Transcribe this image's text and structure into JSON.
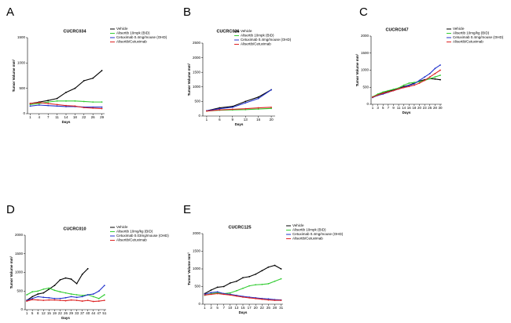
{
  "chart_data": [
    {
      "type": "line",
      "label": "A",
      "title": "CUCRC034",
      "x_label": "Days",
      "y_label": "Tumor Volume mm³",
      "categories": [
        1,
        4,
        7,
        11,
        14,
        18,
        22,
        26,
        29
      ],
      "ylim": [
        0,
        1500
      ],
      "yticks": [
        0,
        500,
        1000,
        1500
      ],
      "series": [
        {
          "name": "Vehicle",
          "color": "#000000",
          "values": [
            200,
            230,
            260,
            300,
            420,
            500,
            650,
            700,
            850
          ]
        },
        {
          "name": "Alisertib 10mpk (BID)",
          "color": "#33cc33",
          "values": [
            180,
            200,
            230,
            250,
            250,
            250,
            240,
            230,
            230
          ]
        },
        {
          "name": "Cetuximab 0.4mg/mouse (OHD)",
          "color": "#2233cc",
          "values": [
            150,
            170,
            160,
            150,
            140,
            140,
            130,
            130,
            130
          ]
        },
        {
          "name": "Alisertib/Cetuximab",
          "color": "#dd2222",
          "values": [
            200,
            220,
            200,
            180,
            160,
            150,
            120,
            110,
            100
          ]
        }
      ]
    },
    {
      "type": "line",
      "label": "B",
      "title": "CUCRC026",
      "x_label": "Days",
      "y_label": "Tumor Volume mm³",
      "categories": [
        1,
        6,
        9,
        13,
        16,
        20
      ],
      "ylim": [
        0,
        2500
      ],
      "yticks": [
        0,
        500,
        1000,
        1500,
        2000,
        2500
      ],
      "series": [
        {
          "name": "Vehicle",
          "color": "#000000",
          "values": [
            180,
            280,
            330,
            500,
            650,
            900
          ]
        },
        {
          "name": "Alisertib 10mpk (BID)",
          "color": "#33cc33",
          "values": [
            170,
            200,
            210,
            220,
            240,
            260
          ]
        },
        {
          "name": "Cetuximab 0.4mg/mouse (OHD)",
          "color": "#2233cc",
          "values": [
            180,
            250,
            300,
            450,
            600,
            900
          ]
        },
        {
          "name": "Alisertib/Cetuximab",
          "color": "#dd2222",
          "values": [
            170,
            210,
            230,
            250,
            280,
            300
          ]
        }
      ]
    },
    {
      "type": "line",
      "label": "C",
      "title": "CUCRC047",
      "x_label": "Days",
      "y_label": "Tumor Volume mm³",
      "categories": [
        1,
        3,
        5,
        7,
        9,
        11,
        14,
        16,
        18,
        20,
        23,
        25,
        28,
        30
      ],
      "ylim": [
        0,
        2000
      ],
      "yticks": [
        0,
        500,
        1000,
        1500,
        2000
      ],
      "series": [
        {
          "name": "Vehicle",
          "color": "#000000",
          "values": [
            200,
            280,
            330,
            380,
            420,
            460,
            520,
            560,
            620,
            680,
            720,
            750,
            740,
            720
          ]
        },
        {
          "name": "Alisertib 10mg/kg (BID)",
          "color": "#33cc33",
          "values": [
            220,
            300,
            360,
            400,
            440,
            480,
            560,
            620,
            640,
            660,
            700,
            750,
            800,
            850
          ]
        },
        {
          "name": "Cetuximab 0.4mg/mouse (OHD)",
          "color": "#2233cc",
          "values": [
            200,
            260,
            300,
            350,
            400,
            450,
            500,
            550,
            600,
            700,
            800,
            900,
            1050,
            1150
          ]
        },
        {
          "name": "Alisertib/Cetuximab",
          "color": "#dd2222",
          "values": [
            210,
            270,
            320,
            360,
            400,
            450,
            490,
            520,
            560,
            620,
            700,
            800,
            900,
            1000
          ]
        }
      ]
    },
    {
      "type": "line",
      "label": "D",
      "title": "CUCRC010",
      "x_label": "Days",
      "y_label": "Tumor Volume mm³",
      "categories": [
        1,
        5,
        8,
        12,
        15,
        19,
        22,
        26,
        29,
        33,
        37,
        40,
        44,
        47,
        51
      ],
      "ylim": [
        0,
        2000
      ],
      "yticks": [
        0,
        500,
        1000,
        1500,
        2000
      ],
      "series": [
        {
          "name": "Vehicle",
          "color": "#000000",
          "values": [
            250,
            350,
            420,
            450,
            550,
            650,
            800,
            850,
            820,
            700,
            950,
            1100,
            null,
            null,
            null
          ]
        },
        {
          "name": "Alisertib 10mg/kg (BID)",
          "color": "#33cc33",
          "values": [
            400,
            480,
            500,
            550,
            580,
            520,
            480,
            450,
            420,
            400,
            380,
            400,
            350,
            300,
            400
          ]
        },
        {
          "name": "Cetuximab 0.03mg/mouse (OHD)",
          "color": "#2233cc",
          "values": [
            250,
            300,
            350,
            330,
            320,
            300,
            300,
            320,
            350,
            330,
            350,
            400,
            420,
            500,
            650
          ]
        },
        {
          "name": "Alisertib/Cetuximab",
          "color": "#dd2222",
          "values": [
            230,
            270,
            260,
            250,
            260,
            260,
            250,
            240,
            260,
            250,
            230,
            250,
            220,
            230,
            250
          ]
        }
      ]
    },
    {
      "type": "line",
      "label": "E",
      "title": "CUCRC125",
      "x_label": "Days",
      "y_label": "Tumor Volume mm³",
      "categories": [
        1,
        3,
        5,
        7,
        10,
        13,
        15,
        17,
        20,
        22,
        25,
        28,
        31
      ],
      "ylim": [
        0,
        2000
      ],
      "yticks": [
        0,
        500,
        1000,
        1500,
        2000
      ],
      "series": [
        {
          "name": "Vehicle",
          "color": "#000000",
          "values": [
            300,
            400,
            480,
            500,
            600,
            650,
            750,
            780,
            850,
            950,
            1050,
            1100,
            1000
          ]
        },
        {
          "name": "Alisertib 10mpk (BID)",
          "color": "#33cc33",
          "values": [
            250,
            300,
            320,
            300,
            320,
            380,
            450,
            520,
            550,
            560,
            580,
            650,
            720
          ]
        },
        {
          "name": "Cetuximab 0.4mg/mouse (OHD)",
          "color": "#2233cc",
          "values": [
            280,
            330,
            350,
            300,
            280,
            250,
            220,
            200,
            180,
            160,
            150,
            130,
            120
          ]
        },
        {
          "name": "Alisertib/Cetuximab",
          "color": "#dd2222",
          "values": [
            260,
            280,
            300,
            280,
            260,
            230,
            200,
            180,
            160,
            140,
            120,
            110,
            110
          ]
        }
      ]
    }
  ]
}
